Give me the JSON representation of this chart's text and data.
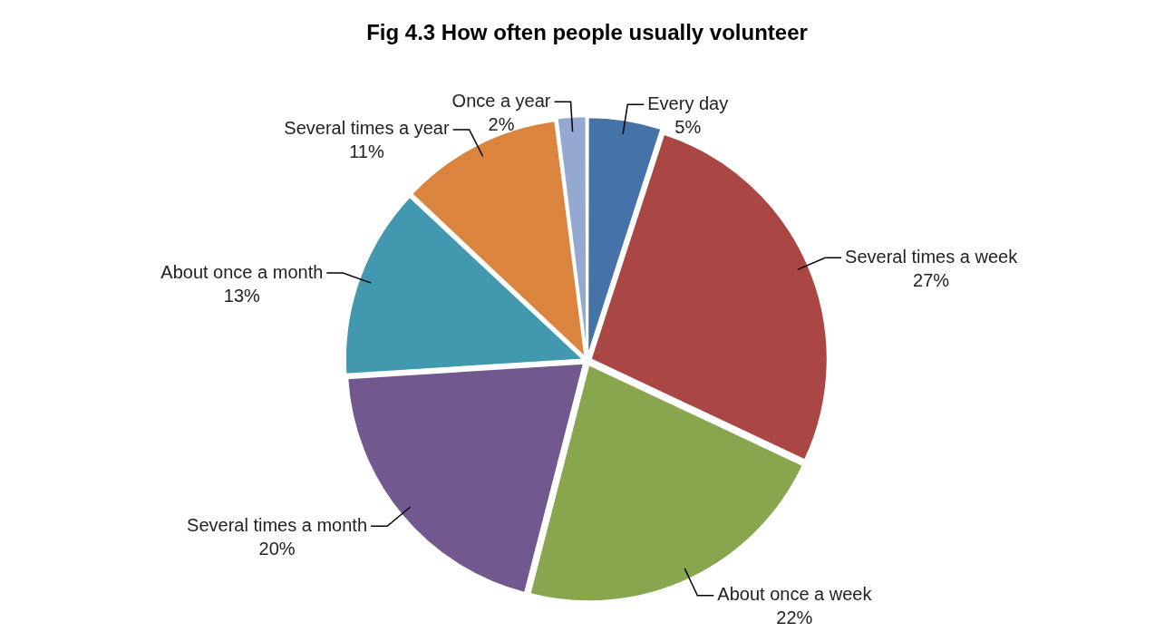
{
  "chart_data": {
    "type": "pie",
    "title": "Fig 4.3 How often people usually volunteer",
    "categories": [
      "Every day",
      "Several times a week",
      "About once a week",
      "Several times a month",
      "About once a month",
      "Several times a year",
      "Once a year"
    ],
    "values": [
      5,
      27,
      22,
      20,
      13,
      11,
      2
    ],
    "value_labels": [
      "5%",
      "27%",
      "22%",
      "20%",
      "13%",
      "11%",
      "2%"
    ],
    "colors": [
      "#4572a7",
      "#aa4643",
      "#89a54e",
      "#71588f",
      "#4198af",
      "#db843d",
      "#93a9cf"
    ],
    "legend": false
  }
}
